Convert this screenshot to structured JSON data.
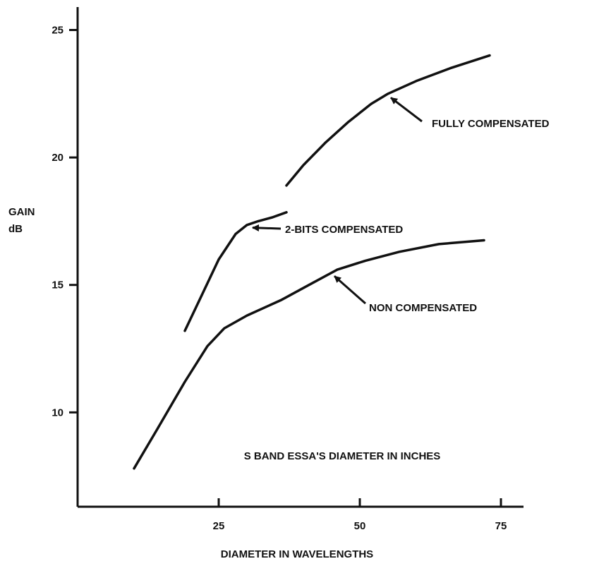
{
  "chart_data": {
    "type": "line",
    "title": "",
    "xlabel": "DIAMETER IN WAVELENGTHS",
    "ylabel_line1": "GAIN",
    "ylabel_line2": "dB",
    "xlim": [
      0,
      79
    ],
    "ylim": [
      6.3,
      25.9
    ],
    "x_ticks": [
      25,
      50,
      75
    ],
    "y_ticks": [
      10,
      15,
      20,
      25
    ],
    "grid": false,
    "legend": "none",
    "line_color": "#111111",
    "series": [
      {
        "name": "FULLY COMPENSATED",
        "x": [
          37,
          40,
          44,
          48,
          52,
          55,
          60,
          66,
          73
        ],
        "y": [
          18.9,
          19.7,
          20.6,
          21.4,
          22.1,
          22.5,
          23.0,
          23.5,
          24.0
        ]
      },
      {
        "name": "2-BITS COMPENSATED",
        "x": [
          19,
          22,
          25,
          28,
          30,
          32,
          34.5,
          37
        ],
        "y": [
          13.2,
          14.6,
          16.0,
          17.0,
          17.35,
          17.5,
          17.65,
          17.85
        ]
      },
      {
        "name": "NON COMPENSATED",
        "x": [
          10,
          14,
          19,
          23,
          26,
          30,
          36,
          41,
          46,
          51,
          57,
          64,
          72
        ],
        "y": [
          7.8,
          9.3,
          11.2,
          12.6,
          13.3,
          13.8,
          14.4,
          15.0,
          15.6,
          15.95,
          16.3,
          16.6,
          16.75
        ]
      }
    ],
    "annotations": [
      {
        "text": "FULLY COMPENSATED",
        "x": 55,
        "y": 22.4
      },
      {
        "text": "2-BITS COMPENSATED",
        "x": 30.5,
        "y": 17.3
      },
      {
        "text": "NON COMPENSATED",
        "x": 45,
        "y": 15.4
      }
    ],
    "caption": "S BAND ESSA'S DIAMETER IN INCHES"
  }
}
